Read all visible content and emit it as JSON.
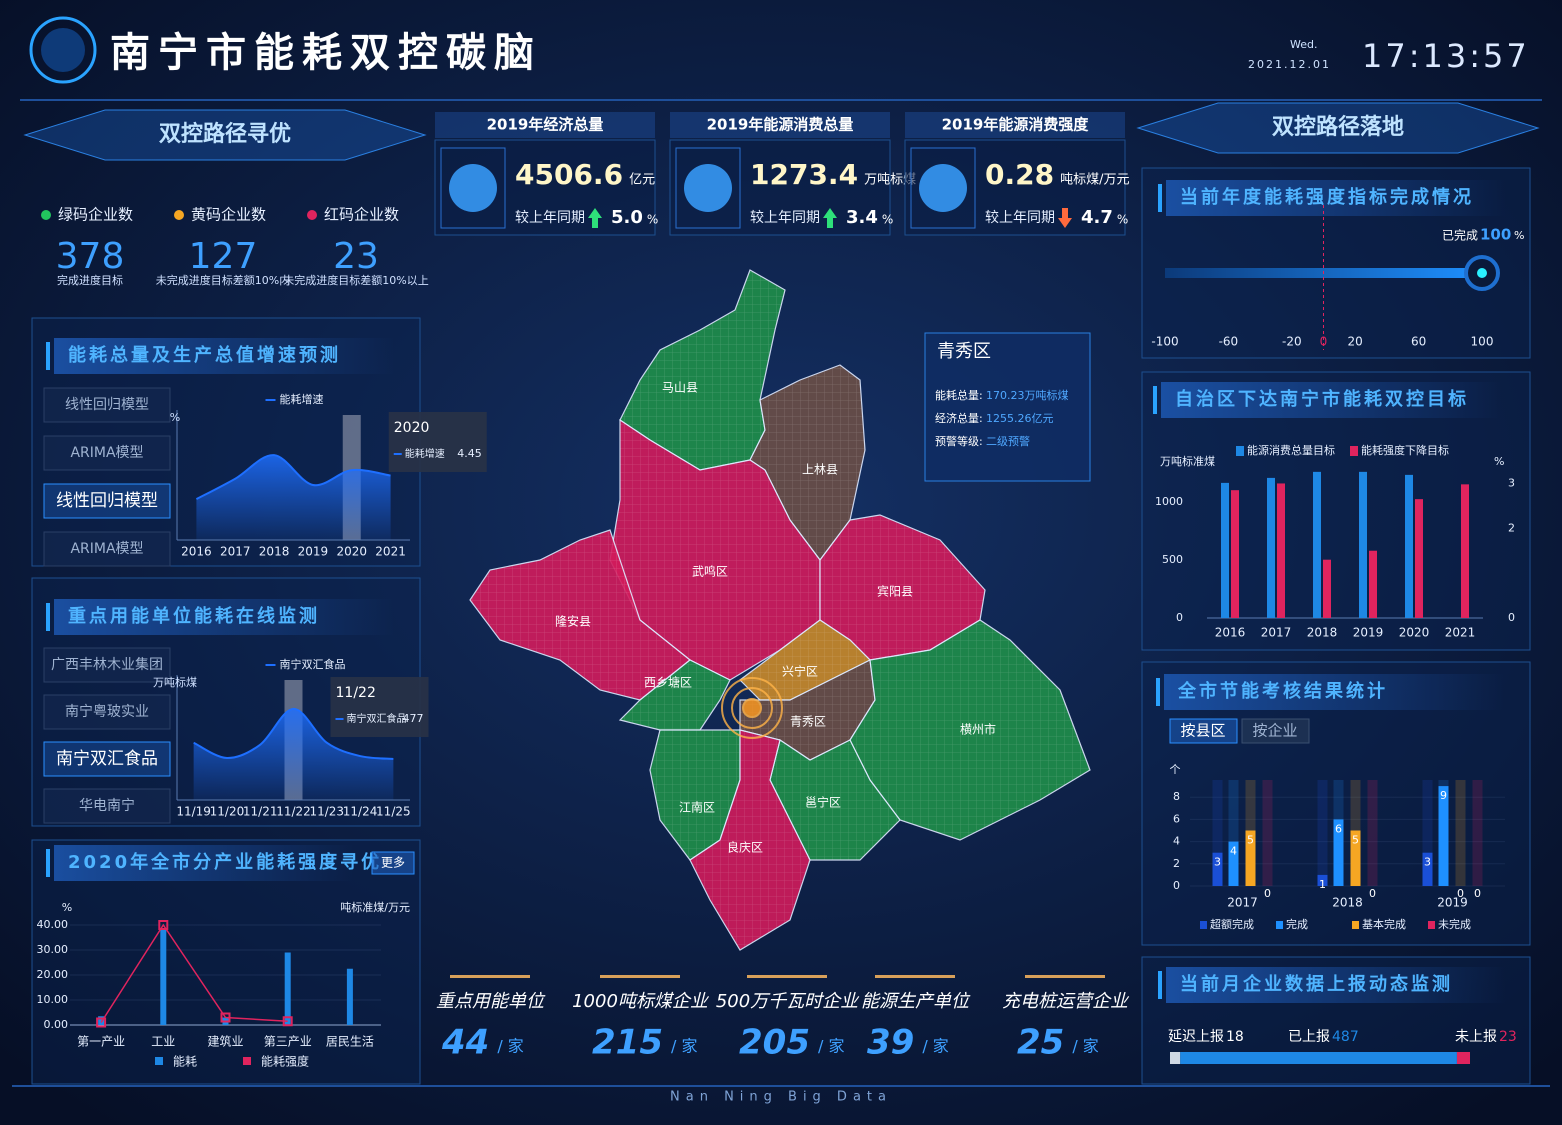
{
  "header": {
    "title": "南宁市能耗双控碳脑",
    "weekday": "Wed.",
    "date": "2021.12.01",
    "time": "17:13:57",
    "footer": "Nan Ning Big Data"
  },
  "left": {
    "banner": "双控路径寻优",
    "codes": [
      {
        "label": "绿码企业数",
        "value": 378,
        "note": "完成进度目标",
        "color": "#22c55e"
      },
      {
        "label": "黄码企业数",
        "value": 127,
        "note": "未完成进度目标差额10%内",
        "color": "#f5a623"
      },
      {
        "label": "红码企业数",
        "value": 23,
        "note": "未完成进度目标差额10%以上",
        "color": "#e0245e"
      }
    ],
    "forecast": {
      "title": "能耗总量及生产总值增速预测",
      "tabs": [
        "线性回归模型",
        "ARIMA模型",
        "线性回归模型",
        "ARIMA模型"
      ],
      "active_tab": 2,
      "chart": {
        "type": "area",
        "legend": "能耗增速",
        "y_label": "%",
        "categories": [
          2016,
          2017,
          2018,
          2019,
          2020,
          2021
        ],
        "values": [
          2.6,
          3.9,
          5.4,
          3.5,
          4.45,
          4.1
        ],
        "ylim": [
          0,
          7
        ],
        "selected": 4,
        "color": "#1e6fff"
      }
    },
    "monitor": {
      "title": "重点用能单位能耗在线监测",
      "tabs": [
        "广西丰林木业集团",
        "南宁粤玻实业",
        "南宁双汇食品",
        "华电南宁"
      ],
      "active_tab": 2,
      "chart": {
        "type": "area",
        "legend": "南宁双汇食品",
        "y_label": "万吨标煤",
        "categories": [
          "11/19",
          "11/20",
          "11/21",
          "11/22",
          "11/23",
          "11/24",
          "11/25"
        ],
        "values": [
          300,
          220,
          290,
          477,
          300,
          230,
          215
        ],
        "ylim": [
          0,
          550
        ],
        "selected": 3,
        "color": "#1e6fff"
      }
    },
    "industry": {
      "title": "2020年全市分产业能耗强度寻优",
      "more": "更多",
      "chart": {
        "type": "bar_line",
        "y_label": "%",
        "y2_label": "吨标准煤/万元",
        "categories": [
          "第一产业",
          "工业",
          "建筑业",
          "第三产业",
          "居民生活"
        ],
        "series": [
          {
            "name": "能耗",
            "type": "bar",
            "color": "#1e88e5",
            "values": [
              3.5,
              38,
              3,
              29,
              22.5
            ]
          },
          {
            "name": "能耗强度",
            "type": "line",
            "color": "#e0245e",
            "values": [
              1,
              40,
              3,
              1.5,
              null
            ]
          }
        ],
        "ylim": [
          0,
          44
        ],
        "yticks": [
          {
            "value": 0,
            "label": "0.00"
          },
          {
            "value": 10,
            "label": "10.00"
          },
          {
            "value": 20,
            "label": "20.00"
          },
          {
            "value": 30,
            "label": "30.00"
          },
          {
            "value": 40,
            "label": "40.00"
          }
        ]
      }
    }
  },
  "center": {
    "kpis": [
      {
        "title": "2019年经济总量",
        "value": 4506.6,
        "unit": "亿元",
        "compare": "较上年同期",
        "change": "5.0",
        "change_unit": "%",
        "direction": "up"
      },
      {
        "title": "2019年能源消费总量",
        "value": 1273.4,
        "unit": "万吨标煤",
        "compare": "较上年同期",
        "change": "3.4",
        "change_unit": "%",
        "direction": "up"
      },
      {
        "title": "2019年能源消费强度",
        "value": 0.28,
        "unit": "吨标煤/万元",
        "compare": "较上年同期",
        "change": "4.7",
        "change_unit": "%",
        "direction": "down"
      }
    ],
    "map": {
      "regions": [
        {
          "name": "马山县",
          "color": "#1f8f4a"
        },
        {
          "name": "上林县",
          "color": "#6b4f47"
        },
        {
          "name": "武鸣区",
          "color": "#d21b5c"
        },
        {
          "name": "宾阳县",
          "color": "#d21b5c"
        },
        {
          "name": "隆安县",
          "color": "#d21b5c"
        },
        {
          "name": "西乡塘区",
          "color": "#1f8f4a"
        },
        {
          "name": "兴宁区",
          "color": "#c98a2a"
        },
        {
          "name": "青秀区",
          "color": "#6b4f47"
        },
        {
          "name": "横州市",
          "color": "#1f8f4a"
        },
        {
          "name": "江南区",
          "color": "#1f8f4a"
        },
        {
          "name": "邕宁区",
          "color": "#1f8f4a"
        },
        {
          "name": "良庆区",
          "color": "#d21b5c"
        }
      ],
      "tooltip": {
        "title": "青秀区",
        "rows": [
          {
            "label": "能耗总量:",
            "value": "170.23万吨标煤"
          },
          {
            "label": "经济总量:",
            "value": "1255.26亿元"
          },
          {
            "label": "预警等级:",
            "value": "二级预警"
          }
        ]
      }
    },
    "units": [
      {
        "label": "重点用能单位",
        "value": 44,
        "unit": "/ 家"
      },
      {
        "label": "1000吨标煤企业",
        "value": 215,
        "unit": "/ 家"
      },
      {
        "label": "500万千瓦时企业",
        "value": 205,
        "unit": "/ 家"
      },
      {
        "label": "能源生产单位",
        "value": 39,
        "unit": "/ 家"
      },
      {
        "label": "充电桩运营企业",
        "value": 25,
        "unit": "/ 家"
      }
    ]
  },
  "right": {
    "banner": "双控路径落地",
    "progress": {
      "title": "当前年度能耗强度指标完成情况",
      "label": "已完成",
      "value": 100,
      "unit": "%",
      "xlim": [
        -100,
        100
      ],
      "xticks": [
        -100,
        -60,
        -20,
        0,
        20,
        60,
        100
      ]
    },
    "targets": {
      "title": "自治区下达南宁市能耗双控目标",
      "chart": {
        "type": "bar",
        "y_label": "万吨标准煤",
        "y2_label": "%",
        "categories": [
          2016,
          2017,
          2018,
          2019,
          2020,
          2021
        ],
        "series": [
          {
            "name": "能源消费总量目标",
            "color": "#1e88e5",
            "values": [
              1164,
              1207,
              1259,
              1259,
              1233,
              null
            ]
          },
          {
            "name": "能耗强度下降目标",
            "color": "#e0245e",
            "axis": "y2",
            "values": [
              2.85,
              3.0,
              1.3,
              1.5,
              2.65,
              2.98
            ]
          }
        ],
        "ylim": [
          0,
          1275
        ],
        "yticks": [
          0,
          500,
          1000
        ],
        "y2lim": [
          0,
          3.3
        ],
        "y2ticks": [
          0,
          2,
          3
        ]
      }
    },
    "assessment": {
      "title": "全市节能考核结果统计",
      "tabs": [
        "按县区",
        "按企业"
      ],
      "active_tab": 0,
      "chart": {
        "type": "bar",
        "y_label": "个",
        "categories": [
          2017,
          2018,
          2019
        ],
        "series": [
          {
            "name": "超额完成",
            "color": "#1a4fd6",
            "values": [
              3,
              1,
              3
            ]
          },
          {
            "name": "完成",
            "color": "#1e90ff",
            "values": [
              4,
              6,
              9
            ]
          },
          {
            "name": "基本完成",
            "color": "#f5a623",
            "values": [
              5,
              5,
              0
            ]
          },
          {
            "name": "未完成",
            "color": "#e0245e",
            "values": [
              0,
              0,
              0
            ]
          }
        ],
        "ylim": [
          0,
          10
        ],
        "yticks": [
          0,
          2,
          4,
          6,
          8
        ]
      }
    },
    "report": {
      "title": "当前月企业数据上报动态监测",
      "items": [
        {
          "label": "延迟上报",
          "value": 18,
          "color": "#cfd8e3"
        },
        {
          "label": "已上报",
          "value": 487,
          "color": "#1e88e5"
        },
        {
          "label": "未上报",
          "value": 23,
          "color": "#e0245e"
        }
      ]
    }
  }
}
